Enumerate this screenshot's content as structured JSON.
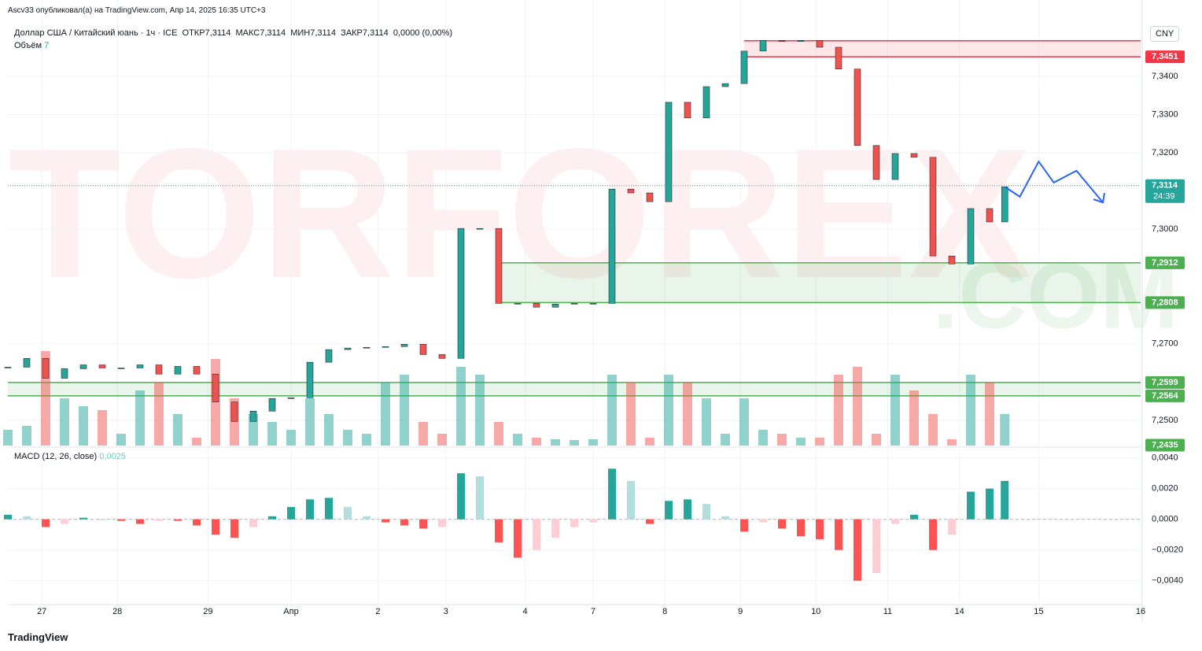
{
  "header": {
    "author_line": "Ascv33 опубликовал(а) на TradingView.com, Апр 14, 2025 16:35 UTC+3",
    "symbol": "Доллар США / Китайский юань · 1ч · ICE",
    "ohlc": [
      "ОТКР7,3114",
      "МАКС7,3114",
      "МИН7,3114",
      "ЗАКР7,3114"
    ],
    "change": "0,0000 (0,00%)",
    "volume_label": "Объём",
    "volume_value": "7"
  },
  "currency": "CNY",
  "watermark": {
    "main": "TORFOREX",
    "domain": ".COM"
  },
  "footer": "TradingView",
  "chart_data": [
    {
      "type": "candlestick",
      "xlim": [
        0,
        300
      ],
      "ylim": [
        7.2434,
        7.3579
      ],
      "xticks": [
        {
          "value": 9,
          "label": "27"
        },
        {
          "value": 29,
          "label": "28"
        },
        {
          "value": 53,
          "label": "29"
        },
        {
          "value": 75,
          "label": "Апр"
        },
        {
          "value": 98,
          "label": "2"
        },
        {
          "value": 116,
          "label": "3"
        },
        {
          "value": 137,
          "label": "4"
        },
        {
          "value": 155,
          "label": "7"
        },
        {
          "value": 174,
          "label": "8"
        },
        {
          "value": 194,
          "label": "9"
        },
        {
          "value": 214,
          "label": "10"
        },
        {
          "value": 233,
          "label": "11"
        },
        {
          "value": 252,
          "label": "14"
        },
        {
          "value": 273,
          "label": "15"
        },
        {
          "value": 300,
          "label": "16"
        }
      ],
      "yticks": [
        {
          "value": 7.34,
          "label": "7,3400"
        },
        {
          "value": 7.33,
          "label": "7,3300"
        },
        {
          "value": 7.32,
          "label": "7,3200"
        },
        {
          "value": 7.3,
          "label": "7,3000"
        },
        {
          "value": 7.27,
          "label": "7,2700"
        },
        {
          "value": 7.25,
          "label": "7,2500"
        }
      ],
      "grid": true,
      "x": [
        0,
        5,
        10,
        15,
        20,
        25,
        30,
        35,
        40,
        45,
        50,
        55,
        60,
        65,
        70,
        75,
        80,
        85,
        90,
        95,
        100,
        105,
        110,
        115,
        120,
        125,
        130,
        135,
        140,
        145,
        150,
        155,
        160,
        165,
        170,
        175,
        180,
        185,
        190,
        195,
        200,
        205,
        210,
        215,
        220,
        225,
        230,
        235,
        240,
        245,
        250,
        255,
        260,
        264
      ],
      "values": [
        7.2639,
        7.2662,
        7.261,
        7.2635,
        7.2645,
        7.2637,
        7.2637,
        7.2645,
        7.2621,
        7.2641,
        7.2621,
        7.2548,
        7.2497,
        7.2524,
        7.2557,
        7.2559,
        7.2652,
        7.2685,
        7.2689,
        7.2691,
        7.2693,
        7.2699,
        7.2672,
        7.2662,
        7.3002,
        7.3002,
        7.2806,
        7.2806,
        7.2796,
        7.2804,
        7.2806,
        7.2806,
        7.3105,
        7.3095,
        7.3072,
        7.3332,
        7.3291,
        7.3373,
        7.3381,
        7.3466,
        7.3493,
        7.3491,
        7.3493,
        7.3476,
        7.3419,
        7.3219,
        7.313,
        7.3198,
        7.3188,
        7.293,
        7.2909,
        7.3054,
        7.3019,
        7.3111
      ],
      "volume": [
        20,
        25,
        120,
        60,
        50,
        45,
        15,
        70,
        80,
        40,
        10,
        110,
        60,
        40,
        30,
        20,
        60,
        40,
        20,
        15,
        80,
        90,
        30,
        15,
        100,
        90,
        30,
        15,
        10,
        8,
        7,
        8,
        90,
        80,
        10,
        90,
        80,
        60,
        15,
        60,
        20,
        15,
        10,
        10,
        90,
        100,
        15,
        90,
        70,
        40,
        8,
        90,
        80,
        40
      ],
      "colors": {
        "up": "#26a69a",
        "down": "#ef5350"
      },
      "zones": [
        {
          "from": 7.3451,
          "to": 7.3493,
          "x_start": 195,
          "color": "#f23645"
        },
        {
          "from": 7.2808,
          "to": 7.2912,
          "x_start": 130,
          "color": "#4caf50"
        },
        {
          "from": 7.2564,
          "to": 7.2599,
          "x_start": 0,
          "color": "#4caf50"
        }
      ],
      "forecast": {
        "color": "#2962ff",
        "x": [
          264,
          268,
          273,
          277,
          283,
          290
        ],
        "values": [
          7.3111,
          7.3085,
          7.3177,
          7.3122,
          7.3153,
          7.307
        ]
      },
      "price_labels": [
        {
          "value": 7.3451,
          "label": "7,3451",
          "color": "#f23645"
        },
        {
          "value": 7.3114,
          "label": "7,3114",
          "sub": "24:39",
          "color": "#26a69a"
        },
        {
          "value": 7.2912,
          "label": "7,2912",
          "color": "#4caf50"
        },
        {
          "value": 7.2808,
          "label": "7,2808",
          "color": "#4caf50"
        },
        {
          "value": 7.2599,
          "label": "7,2599",
          "color": "#4caf50"
        },
        {
          "value": 7.2564,
          "label": "7,2564",
          "color": "#4caf50"
        },
        {
          "value": 7.2435,
          "label": "7,2435",
          "color": "#4caf50"
        }
      ]
    },
    {
      "type": "bar",
      "title": "MACD (12, 26, close)",
      "value_text": "0,0025",
      "xlim": [
        0,
        300
      ],
      "ylim": [
        -0.0054,
        0.0046
      ],
      "yticks": [
        {
          "value": 0.004,
          "label": "0,0040"
        },
        {
          "value": 0.002,
          "label": "0,0020"
        },
        {
          "value": 0,
          "label": "0,0000"
        },
        {
          "value": -0.002,
          "label": "−0,0020"
        },
        {
          "value": -0.004,
          "label": "−0,0040"
        }
      ],
      "x": [
        0,
        5,
        10,
        15,
        20,
        25,
        30,
        35,
        40,
        45,
        50,
        55,
        60,
        65,
        70,
        75,
        80,
        85,
        90,
        95,
        100,
        105,
        110,
        115,
        120,
        125,
        130,
        135,
        140,
        145,
        150,
        155,
        160,
        165,
        170,
        175,
        180,
        185,
        190,
        195,
        200,
        205,
        210,
        215,
        220,
        225,
        230,
        235,
        240,
        245,
        250,
        255,
        260,
        264
      ],
      "values": [
        0.0003,
        0.0002,
        -0.0005,
        -0.0003,
        0.0001,
        0,
        -0.0001,
        -0.0003,
        -0.0001,
        -0.0001,
        -0.0004,
        -0.001,
        -0.0012,
        -0.0005,
        0.0002,
        0.0008,
        0.0013,
        0.0014,
        0.0008,
        0.0002,
        -0.0002,
        -0.0004,
        -0.0006,
        -0.0005,
        0.003,
        0.0028,
        -0.0015,
        -0.0025,
        -0.002,
        -0.0012,
        -0.0005,
        -0.0002,
        0.0033,
        0.0025,
        -0.0003,
        0.0012,
        0.0013,
        0.001,
        0.0002,
        -0.0008,
        -0.0002,
        -0.0006,
        -0.0011,
        -0.0013,
        -0.002,
        -0.004,
        -0.0035,
        -0.0003,
        0.0003,
        -0.002,
        -0.001,
        0.0018,
        0.002,
        0.0025
      ]
    }
  ]
}
